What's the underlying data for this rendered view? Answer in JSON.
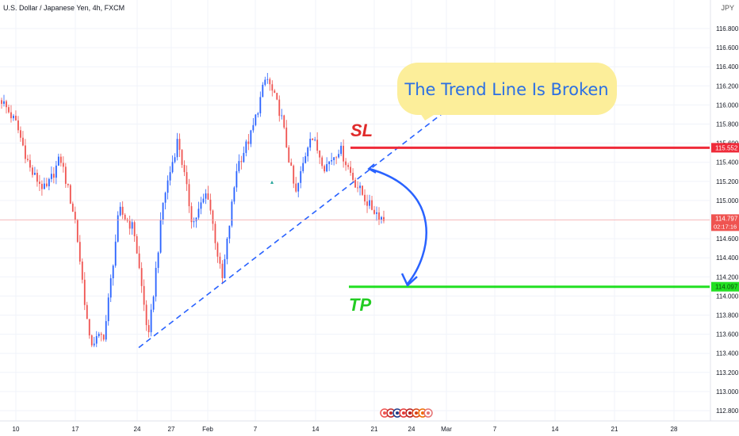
{
  "header": {
    "symbol_title": "U.S. Dollar / Japanese Yen, 4h, FXCM",
    "currency": "JPY"
  },
  "colors": {
    "up_candle": "#2962ff",
    "down_candle": "#ef5350",
    "sl_line": "#ef2b3a",
    "tp_line": "#22e022",
    "trend_line": "#2962ff",
    "callout_bg": "#fcee9a",
    "callout_text": "#2b6fe3",
    "last_price_bg": "#ef5350",
    "sl_text": "#e02b2b",
    "tp_text": "#22cc22",
    "arrow": "#2962ff"
  },
  "annotations": {
    "callout": "The Trend Line Is Broken",
    "sl_label": "SL",
    "tp_label": "TP"
  },
  "price_axis": {
    "ticks": [
      "116.800",
      "116.600",
      "116.400",
      "116.200",
      "116.000",
      "115.800",
      "115.600",
      "115.400",
      "115.200",
      "115.000",
      "114.800",
      "114.600",
      "114.400",
      "114.200",
      "114.000",
      "113.800",
      "113.600",
      "113.400",
      "113.200",
      "113.000",
      "112.800"
    ],
    "sl_price": "115.552",
    "last_price": "114.797",
    "countdown": "02:17:16",
    "tp_price": "114.097"
  },
  "time_axis": {
    "ticks": [
      "10",
      "17",
      "24",
      "27",
      "Feb",
      "7",
      "14",
      "21",
      "24",
      "Mar",
      "7",
      "14",
      "21",
      "28"
    ]
  },
  "chart_data": {
    "type": "candlestick",
    "symbol": "USDJPY",
    "interval": "4h",
    "ylim": [
      112.7,
      116.9
    ],
    "current_price": 114.797,
    "stop_loss": 115.552,
    "take_profit": 114.097,
    "trend_line": {
      "from_price": 113.46,
      "to_price": 116.02
    },
    "swing_points": [
      116.05,
      115.8,
      115.3,
      115.1,
      115.45,
      114.8,
      113.5,
      113.6,
      114.9,
      114.7,
      113.55,
      115.0,
      115.65,
      114.75,
      115.1,
      114.15,
      115.35,
      115.7,
      116.3,
      115.9,
      115.05,
      115.7,
      115.35,
      115.55,
      115.2,
      114.95,
      114.8
    ]
  }
}
